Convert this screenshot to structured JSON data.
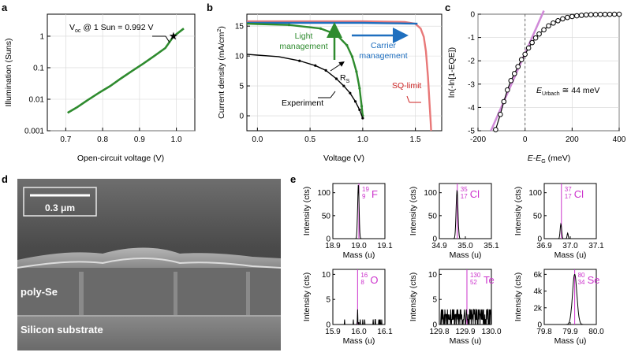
{
  "panel_labels": {
    "a": "a",
    "b": "b",
    "c": "c",
    "d": "d",
    "e": "e"
  },
  "chart_data": [
    {
      "panel": "a",
      "type": "line",
      "xlabel": "Open-circuit voltage (V)",
      "ylabel": "Illumination (Suns)",
      "xlim": [
        0.65,
        1.05
      ],
      "ylim_log": [
        0.001,
        5
      ],
      "x_ticks": [
        0.7,
        0.8,
        0.9,
        1.0
      ],
      "x_tick_labels": [
        "0.7",
        "0.8",
        "0.9",
        "1.0"
      ],
      "y_ticks": [
        0.001,
        0.01,
        0.1,
        1
      ],
      "y_tick_labels": [
        "0.001",
        "0.01",
        "0.1",
        "1"
      ],
      "annotation_prefix": "V",
      "annotation_sub": "oc",
      "annotation_suffix": " @ 1 Sun = 0.992 V",
      "series": [
        {
          "name": "Suns-Voc",
          "color": "#2e8b2e",
          "x": [
            0.705,
            0.73,
            0.76,
            0.79,
            0.82,
            0.85,
            0.88,
            0.91,
            0.94,
            0.97,
            0.992,
            1.02
          ],
          "y": [
            0.0037,
            0.0055,
            0.0095,
            0.016,
            0.026,
            0.046,
            0.079,
            0.135,
            0.235,
            0.42,
            0.98,
            1.75
          ]
        }
      ],
      "marker": {
        "x": 0.992,
        "y": 1.0
      }
    },
    {
      "panel": "b",
      "type": "line",
      "xlabel": "Voltage (V)",
      "ylabel_prefix": "Current density (mA/cm",
      "ylabel_sup": "2",
      "ylabel_suffix": ")",
      "xlim": [
        -0.1,
        1.75
      ],
      "ylim": [
        -2.5,
        17
      ],
      "x_ticks": [
        0.0,
        0.5,
        1.0,
        1.5
      ],
      "x_tick_labels": [
        "0.0",
        "0.5",
        "1.0",
        "1.5"
      ],
      "y_ticks": [
        0,
        5,
        10,
        15
      ],
      "y_tick_labels": [
        "0",
        "5",
        "10",
        "15"
      ],
      "series": [
        {
          "name": "SQ-limit",
          "color": "#e87878",
          "x": [
            -0.1,
            0.0,
            0.5,
            1.0,
            1.4,
            1.5,
            1.55,
            1.58,
            1.6,
            1.62,
            1.635,
            1.645,
            1.65
          ],
          "y": [
            15.8,
            15.8,
            15.8,
            15.8,
            15.7,
            15.4,
            14.6,
            13.2,
            10.8,
            6.5,
            2.0,
            -1.0,
            -2.5
          ]
        },
        {
          "name": "Carrier management",
          "color": "#1f6fbf",
          "x": [
            -0.1,
            0.0,
            0.5,
            0.8,
            1.0,
            1.2,
            1.4,
            1.52
          ],
          "y": [
            15.55,
            15.55,
            15.55,
            15.55,
            15.55,
            15.5,
            15.45,
            15.4
          ]
        },
        {
          "name": "Light management",
          "color": "#2e8b2e",
          "x": [
            -0.1,
            0.0,
            0.3,
            0.6,
            0.75,
            0.85,
            0.9,
            0.94,
            0.97,
            0.99,
            1.0
          ],
          "y": [
            15.4,
            15.35,
            15.2,
            14.6,
            13.6,
            11.8,
            9.9,
            7.4,
            4.6,
            1.6,
            0.0
          ]
        },
        {
          "name": "Experiment",
          "color": "#000000",
          "x": [
            -0.1,
            0.0,
            0.2,
            0.4,
            0.55,
            0.65,
            0.75,
            0.82,
            0.88,
            0.93,
            0.97,
            1.0
          ],
          "y": [
            10.3,
            10.15,
            9.9,
            9.2,
            8.4,
            7.6,
            6.2,
            5.0,
            3.8,
            2.4,
            1.0,
            -0.4
          ]
        }
      ],
      "labels": {
        "light": "Light",
        "light2": "management",
        "carrier": "Carrier",
        "carrier2": "management",
        "rs": "R",
        "rs_sub": "S",
        "sq": "SQ-limit",
        "experiment": "Experiment"
      }
    },
    {
      "panel": "c",
      "type": "line",
      "xlabel_prefix": "E",
      "xlabel_mid": "-E",
      "xlabel_sub": "G",
      "xlabel_suffix": " (meV)",
      "ylabel": "ln(-ln[1-EQE])",
      "xlim": [
        -200,
        400
      ],
      "ylim": [
        -5,
        0
      ],
      "x_ticks": [
        -200,
        0,
        200,
        400
      ],
      "x_tick_labels": [
        "-200",
        "0",
        "200",
        "400"
      ],
      "y_ticks": [
        -5,
        -4,
        -3,
        -2,
        -1,
        0
      ],
      "y_tick_labels": [
        "-5",
        "-4",
        "-3",
        "-2",
        "-1",
        "0"
      ],
      "series": [
        {
          "name": "data",
          "color": "#000000",
          "x": [
            -125,
            -105,
            -90,
            -75,
            -60,
            -45,
            -30,
            -15,
            0,
            15,
            30,
            45,
            60,
            80,
            100,
            120,
            140,
            160,
            180,
            200,
            220,
            240,
            260,
            280,
            300,
            320,
            340,
            360,
            380,
            400
          ],
          "y": [
            -4.95,
            -4.3,
            -3.75,
            -3.25,
            -2.85,
            -2.55,
            -2.25,
            -1.95,
            -1.72,
            -1.45,
            -1.22,
            -1.02,
            -0.85,
            -0.67,
            -0.5,
            -0.38,
            -0.28,
            -0.2,
            -0.14,
            -0.1,
            -0.07,
            -0.05,
            -0.03,
            -0.02,
            -0.015,
            -0.01,
            -0.008,
            -0.005,
            -0.003,
            -0.002
          ]
        },
        {
          "name": "Urbach fit",
          "color": "#d08ad8",
          "x": [
            -145,
            80
          ],
          "y": [
            -5.0,
            0.15
          ]
        }
      ],
      "urbach_prefix": "E",
      "urbach_sub": "Urbach",
      "urbach_suffix": " ≅ 44 meV"
    },
    {
      "panel": "e",
      "type": "line",
      "subplots": [
        {
          "xlim": [
            18.9,
            19.1
          ],
          "x_ticks": [
            "18.9",
            "19.0",
            "19.1"
          ],
          "ylim": [
            0,
            120
          ],
          "y_ticks": [
            "0",
            "50",
            "100"
          ],
          "xlabel": "Mass (u)",
          "ylabel": "Intensity (cts)",
          "iso_mass": "19",
          "iso_z": "9",
          "iso_sym": "F",
          "line_pos": 19.0,
          "peak": {
            "center": 18.998,
            "height": 118,
            "width": 0.004
          }
        },
        {
          "xlim": [
            34.9,
            35.1
          ],
          "x_ticks": [
            "34.9",
            "35.0",
            "35.1"
          ],
          "ylim": [
            0,
            120
          ],
          "y_ticks": [
            "0",
            "50",
            "100"
          ],
          "xlabel": "Mass (u)",
          "ylabel": "Intensity (cts)",
          "iso_mass": "35",
          "iso_z": "17",
          "iso_sym": "Cl",
          "line_pos": 34.969,
          "peak": {
            "center": 34.968,
            "height": 105,
            "width": 0.005
          }
        },
        {
          "xlim": [
            36.9,
            37.1
          ],
          "x_ticks": [
            "36.9",
            "37.0",
            "37.1"
          ],
          "ylim": [
            0,
            120
          ],
          "y_ticks": [
            "0",
            "50",
            "100"
          ],
          "xlabel": "Mass (u)",
          "ylabel": "Intensity (cts)",
          "iso_mass": "37",
          "iso_z": "17",
          "iso_sym": "Cl",
          "line_pos": 36.966,
          "peak": {
            "center": 36.964,
            "height": 32,
            "width": 0.004
          },
          "peak2": {
            "center": 36.99,
            "height": 12,
            "width": 0.003
          }
        },
        {
          "xlim": [
            15.9,
            16.1
          ],
          "x_ticks": [
            "15.9",
            "16.0",
            "16.1"
          ],
          "ylim": [
            0,
            11
          ],
          "y_ticks": [
            "0",
            "5",
            "10"
          ],
          "xlabel": "Mass (u)",
          "ylabel": "Intensity (cts)",
          "iso_mass": "16",
          "iso_z": "8",
          "iso_sym": "O",
          "line_pos": 15.995,
          "noise": "sparse",
          "peak": {
            "center": 15.995,
            "height": 3,
            "width": 0.001
          }
        },
        {
          "xlim": [
            129.8,
            130.0
          ],
          "x_ticks": [
            "129.8",
            "129.9",
            "130.0"
          ],
          "ylim": [
            0,
            11
          ],
          "y_ticks": [
            "0",
            "5",
            "10"
          ],
          "xlabel": "Mass (u)",
          "ylabel": "Intensity (cts)",
          "iso_mass": "130",
          "iso_z": "52",
          "iso_sym": "Te",
          "line_pos": 129.906,
          "noise": "dense"
        },
        {
          "xlim": [
            79.8,
            80.0
          ],
          "x_ticks": [
            "79.8",
            "79.9",
            "80.0"
          ],
          "ylim": [
            0,
            6600
          ],
          "y_ticks": [
            "0",
            "2k",
            "4k",
            "6k"
          ],
          "xlabel": "Mass (u)",
          "ylabel": "Intensity (cts)",
          "iso_mass": "80",
          "iso_z": "34",
          "iso_sym": "Se",
          "line_pos": 79.917,
          "peak": {
            "center": 79.917,
            "height": 6000,
            "width": 0.012
          }
        }
      ]
    }
  ],
  "panel_d": {
    "scale_bar": "0.3 μm",
    "label_top": "poly-Se",
    "label_bottom": "Silicon substrate"
  },
  "colors": {
    "green": "#2e8b2e",
    "blue": "#1f6fbf",
    "sq": "#e87878",
    "magenta": "#cc33cc",
    "urbach": "#d08ad8",
    "sq_label": "#cc2222"
  }
}
